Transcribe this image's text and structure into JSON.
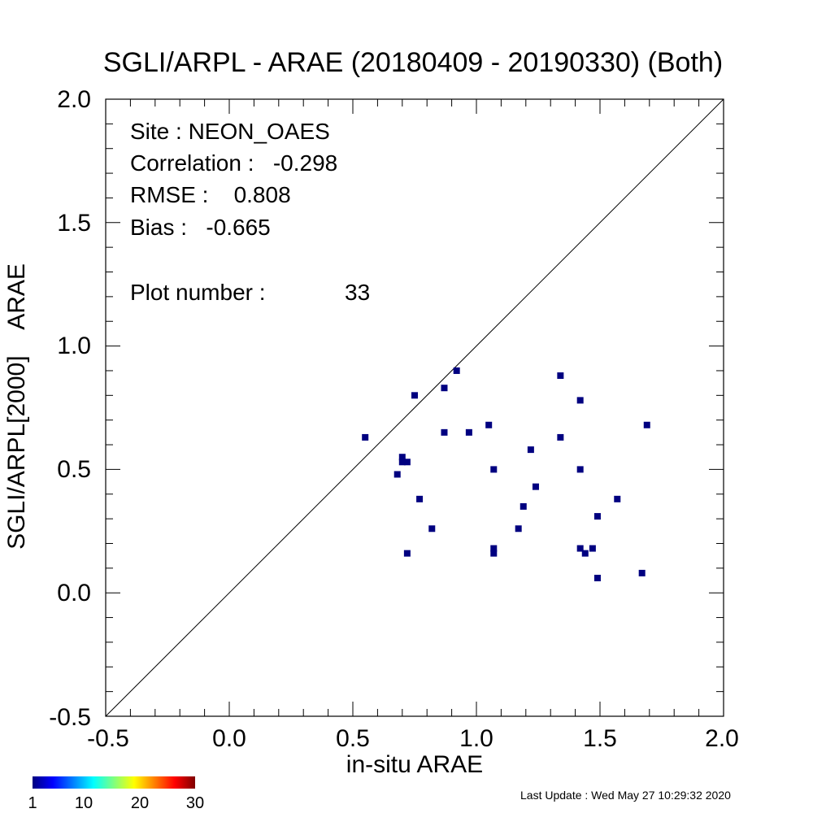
{
  "chart_data": {
    "type": "scatter",
    "title": "SGLI/ARPL - ARAE (20180409 - 20190330) (Both)",
    "xlabel": "in-situ ARAE",
    "ylabel": "SGLI/ARPL[2000]    ARAE",
    "xlim": [
      -0.5,
      2.0
    ],
    "ylim": [
      -0.5,
      2.0
    ],
    "x_ticks": [
      "-0.5",
      "0.0",
      "0.5",
      "1.0",
      "1.5",
      "2.0"
    ],
    "y_ticks": [
      "-0.5",
      "0.0",
      "0.5",
      "1.0",
      "1.5",
      "2.0"
    ],
    "one_to_one_line": true,
    "marker_color": "#000080",
    "stats": {
      "site": "Site : NEON_OAES",
      "correlation": "Correlation :   -0.298",
      "rmse": "RMSE :    0.808",
      "bias": "Bias :   -0.665",
      "plot_number_label": "Plot number :",
      "plot_number_value": "33"
    },
    "points": [
      {
        "x": 0.55,
        "y": 0.63
      },
      {
        "x": 0.68,
        "y": 0.48
      },
      {
        "x": 0.7,
        "y": 0.55
      },
      {
        "x": 0.7,
        "y": 0.53
      },
      {
        "x": 0.72,
        "y": 0.53
      },
      {
        "x": 0.72,
        "y": 0.16
      },
      {
        "x": 0.75,
        "y": 0.8
      },
      {
        "x": 0.77,
        "y": 0.38
      },
      {
        "x": 0.82,
        "y": 0.26
      },
      {
        "x": 0.87,
        "y": 0.83
      },
      {
        "x": 0.87,
        "y": 0.65
      },
      {
        "x": 0.92,
        "y": 0.9
      },
      {
        "x": 0.97,
        "y": 0.65
      },
      {
        "x": 1.05,
        "y": 0.68
      },
      {
        "x": 1.07,
        "y": 0.5
      },
      {
        "x": 1.07,
        "y": 0.18
      },
      {
        "x": 1.07,
        "y": 0.16
      },
      {
        "x": 1.17,
        "y": 0.26
      },
      {
        "x": 1.19,
        "y": 0.35
      },
      {
        "x": 1.22,
        "y": 0.58
      },
      {
        "x": 1.24,
        "y": 0.43
      },
      {
        "x": 1.34,
        "y": 0.88
      },
      {
        "x": 1.34,
        "y": 0.63
      },
      {
        "x": 1.42,
        "y": 0.78
      },
      {
        "x": 1.42,
        "y": 0.5
      },
      {
        "x": 1.42,
        "y": 0.18
      },
      {
        "x": 1.44,
        "y": 0.16
      },
      {
        "x": 1.47,
        "y": 0.18
      },
      {
        "x": 1.49,
        "y": 0.31
      },
      {
        "x": 1.49,
        "y": 0.06
      },
      {
        "x": 1.57,
        "y": 0.38
      },
      {
        "x": 1.67,
        "y": 0.08
      },
      {
        "x": 1.69,
        "y": 0.68
      }
    ],
    "colorbar": {
      "labels": [
        "1",
        "10",
        "20",
        "30"
      ],
      "min": 1,
      "max": 30
    }
  },
  "footer": {
    "last_update": "Last Update : Wed May 27 10:29:32 2020"
  }
}
